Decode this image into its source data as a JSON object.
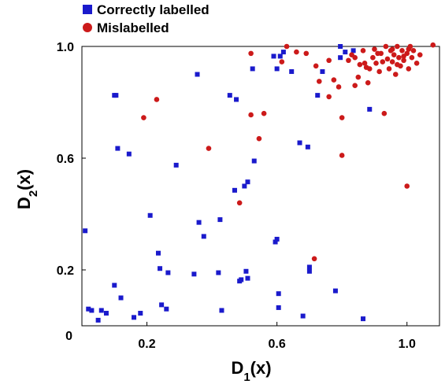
{
  "chart_data": {
    "type": "scatter",
    "xlabel": "D",
    "xlabel_sub": "1",
    "xlabel_suffix": "(x)",
    "ylabel": "D",
    "ylabel_sub": "2",
    "ylabel_suffix": "(x)",
    "xlim": [
      0.0,
      1.1
    ],
    "ylim": [
      0.0,
      1.0
    ],
    "x_ticks": [
      0.2,
      0.6,
      1.0
    ],
    "x_tick_labels": [
      "0.2",
      "0.6",
      "1.0"
    ],
    "y_ticks": [
      0.2,
      0.6,
      1.0
    ],
    "y_tick_labels": [
      "0.2",
      "0.6",
      "1.0"
    ],
    "origin_label": "0",
    "grid": false,
    "legend_position": "top-left",
    "series": [
      {
        "name": "Correctly labelled",
        "marker": "square",
        "color": "#1a1acc",
        "points": [
          [
            0.01,
            0.34
          ],
          [
            0.02,
            0.06
          ],
          [
            0.03,
            0.055
          ],
          [
            0.05,
            0.02
          ],
          [
            0.06,
            0.055
          ],
          [
            0.075,
            0.045
          ],
          [
            0.1,
            0.825
          ],
          [
            0.105,
            0.825
          ],
          [
            0.11,
            0.635
          ],
          [
            0.1,
            0.145
          ],
          [
            0.12,
            0.1
          ],
          [
            0.145,
            0.615
          ],
          [
            0.16,
            0.03
          ],
          [
            0.18,
            0.045
          ],
          [
            0.21,
            0.395
          ],
          [
            0.235,
            0.26
          ],
          [
            0.24,
            0.205
          ],
          [
            0.245,
            0.075
          ],
          [
            0.26,
            0.06
          ],
          [
            0.265,
            0.19
          ],
          [
            0.29,
            0.575
          ],
          [
            0.345,
            0.185
          ],
          [
            0.355,
            0.9
          ],
          [
            0.36,
            0.37
          ],
          [
            0.375,
            0.32
          ],
          [
            0.42,
            0.19
          ],
          [
            0.425,
            0.38
          ],
          [
            0.43,
            0.055
          ],
          [
            0.455,
            0.825
          ],
          [
            0.475,
            0.81
          ],
          [
            0.47,
            0.485
          ],
          [
            0.485,
            0.16
          ],
          [
            0.49,
            0.165
          ],
          [
            0.5,
            0.5
          ],
          [
            0.505,
            0.195
          ],
          [
            0.51,
            0.17
          ],
          [
            0.51,
            0.515
          ],
          [
            0.525,
            0.92
          ],
          [
            0.53,
            0.59
          ],
          [
            0.59,
            0.965
          ],
          [
            0.6,
            0.92
          ],
          [
            0.595,
            0.3
          ],
          [
            0.6,
            0.31
          ],
          [
            0.605,
            0.115
          ],
          [
            0.605,
            0.065
          ],
          [
            0.61,
            0.965
          ],
          [
            0.62,
            0.98
          ],
          [
            0.645,
            0.91
          ],
          [
            0.67,
            0.655
          ],
          [
            0.68,
            0.035
          ],
          [
            0.695,
            0.64
          ],
          [
            0.7,
            0.21
          ],
          [
            0.7,
            0.195
          ],
          [
            0.725,
            0.825
          ],
          [
            0.74,
            0.91
          ],
          [
            0.78,
            0.125
          ],
          [
            0.795,
            1.0
          ],
          [
            0.865,
            0.025
          ],
          [
            0.885,
            0.775
          ],
          [
            0.795,
            0.96
          ],
          [
            0.81,
            0.98
          ],
          [
            0.835,
            0.985
          ]
        ]
      },
      {
        "name": "Mislabelled",
        "marker": "circle",
        "color": "#cc1a1a",
        "points": [
          [
            0.19,
            0.745
          ],
          [
            0.23,
            0.81
          ],
          [
            0.39,
            0.635
          ],
          [
            0.485,
            0.44
          ],
          [
            0.52,
            0.975
          ],
          [
            0.545,
            0.67
          ],
          [
            0.56,
            0.76
          ],
          [
            0.52,
            0.755
          ],
          [
            0.615,
            0.945
          ],
          [
            0.63,
            1.0
          ],
          [
            0.66,
            0.98
          ],
          [
            0.69,
            0.975
          ],
          [
            0.715,
            0.24
          ],
          [
            0.72,
            0.93
          ],
          [
            0.73,
            0.875
          ],
          [
            0.76,
            0.95
          ],
          [
            0.76,
            0.82
          ],
          [
            0.775,
            0.88
          ],
          [
            0.79,
            0.855
          ],
          [
            0.8,
            0.745
          ],
          [
            0.8,
            0.61
          ],
          [
            0.82,
            0.95
          ],
          [
            0.83,
            0.97
          ],
          [
            0.84,
            0.86
          ],
          [
            0.85,
            0.89
          ],
          [
            0.855,
            0.935
          ],
          [
            0.865,
            0.985
          ],
          [
            0.875,
            0.925
          ],
          [
            0.88,
            0.87
          ],
          [
            0.895,
            0.96
          ],
          [
            0.9,
            0.99
          ],
          [
            0.905,
            0.94
          ],
          [
            0.915,
            0.91
          ],
          [
            0.92,
            0.975
          ],
          [
            0.93,
            0.76
          ],
          [
            0.935,
            1.0
          ],
          [
            0.94,
            0.955
          ],
          [
            0.945,
            0.92
          ],
          [
            0.95,
            0.985
          ],
          [
            0.955,
            0.945
          ],
          [
            0.96,
            0.97
          ],
          [
            0.965,
            0.9
          ],
          [
            0.97,
            1.0
          ],
          [
            0.975,
            0.96
          ],
          [
            0.98,
            0.93
          ],
          [
            0.985,
            0.985
          ],
          [
            0.99,
            0.95
          ],
          [
            1.0,
            0.975
          ],
          [
            1.005,
            0.92
          ],
          [
            1.01,
            1.0
          ],
          [
            1.015,
            0.96
          ],
          [
            1.02,
            0.985
          ],
          [
            1.03,
            0.94
          ],
          [
            1.04,
            0.97
          ],
          [
            1.0,
            0.5
          ],
          [
            1.08,
            1.005
          ],
          [
            0.84,
            0.96
          ],
          [
            0.87,
            0.94
          ],
          [
            0.885,
            0.92
          ],
          [
            0.91,
            0.975
          ],
          [
            0.925,
            0.945
          ],
          [
            0.955,
            0.99
          ],
          [
            0.97,
            0.935
          ],
          [
            0.99,
            0.965
          ],
          [
            1.005,
            0.99
          ]
        ]
      }
    ]
  }
}
